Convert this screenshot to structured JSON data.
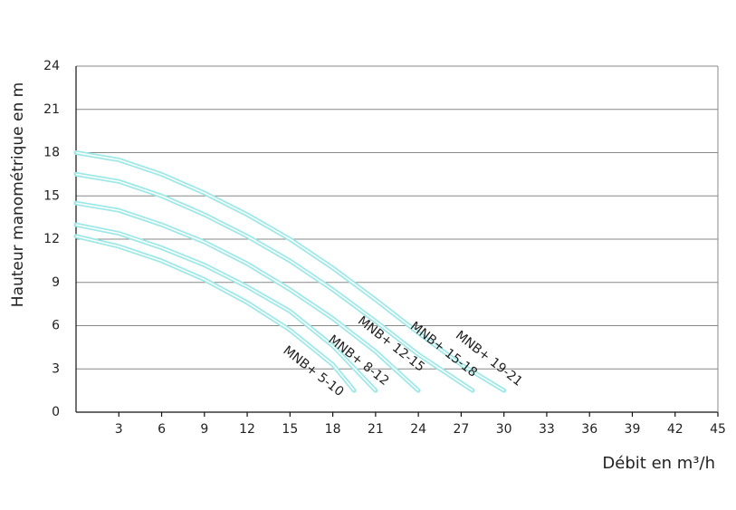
{
  "chart_data": {
    "type": "line",
    "ylabel": "Hauteur manométrique en m",
    "xlabel": "Débit en m³/h",
    "xlim": [
      0,
      45
    ],
    "xticks": [
      3,
      6,
      9,
      12,
      15,
      18,
      21,
      24,
      27,
      30,
      33,
      36,
      39,
      42,
      45
    ],
    "ylim": [
      0,
      24
    ],
    "yticks": [
      0,
      3,
      6,
      9,
      12,
      15,
      18,
      21,
      24
    ],
    "grid": true,
    "series": [
      {
        "name": "MNB+ 19-21",
        "color": "#9ee8e8",
        "x": [
          0,
          3,
          6,
          9,
          12,
          15,
          18,
          21,
          24,
          27,
          30
        ],
        "values": [
          18,
          17.5,
          16.5,
          15.2,
          13.7,
          12,
          10,
          7.8,
          5.5,
          3.3,
          1.5
        ]
      },
      {
        "name": "MNB+ 15-18",
        "color": "#9ee8e8",
        "x": [
          0,
          3,
          6,
          9,
          12,
          15,
          18,
          21,
          24,
          27.8
        ],
        "values": [
          16.5,
          16,
          15,
          13.7,
          12.2,
          10.5,
          8.5,
          6.3,
          4,
          1.5
        ]
      },
      {
        "name": "MNB+ 12-15",
        "color": "#9ee8e8",
        "x": [
          0,
          3,
          6,
          9,
          12,
          15,
          18,
          21,
          24
        ],
        "values": [
          14.5,
          14,
          13,
          11.8,
          10.3,
          8.5,
          6.5,
          4.2,
          1.5
        ]
      },
      {
        "name": "MNB+ 8-12",
        "color": "#9ee8e8",
        "x": [
          0,
          3,
          6,
          9,
          12,
          15,
          18,
          21
        ],
        "values": [
          13,
          12.4,
          11.4,
          10.2,
          8.7,
          7,
          4.6,
          1.5
        ]
      },
      {
        "name": "MNB+ 5-10",
        "color": "#9ee8e8",
        "x": [
          0,
          3,
          6,
          9,
          12,
          15,
          18,
          19.5
        ],
        "values": [
          12.2,
          11.5,
          10.5,
          9.2,
          7.6,
          5.7,
          3.3,
          1.5
        ]
      }
    ]
  }
}
